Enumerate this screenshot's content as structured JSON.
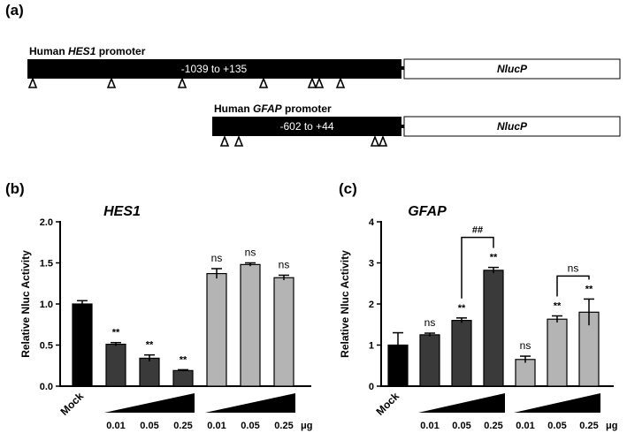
{
  "panels": {
    "a": "(a)",
    "b": "(b)",
    "c": "(c)"
  },
  "schematic": {
    "hes1": {
      "prefix": "Human ",
      "gene": "HES1",
      "suffix": " promoter",
      "region": "-1039 to +135",
      "reporter": "NlucP"
    },
    "gfap": {
      "prefix": "Human ",
      "gene": "GFAP",
      "suffix": " promoter",
      "region": "-602 to +44",
      "reporter": "NlucP"
    }
  },
  "chart_data": [
    {
      "type": "bar",
      "title": "HES1",
      "ylabel": "Relative Nluc Activity",
      "ylim": [
        0,
        2.0
      ],
      "yticks": [
        "0.0",
        "0.5",
        "1.0",
        "1.5",
        "2.0"
      ],
      "yticks_values": [
        0,
        0.5,
        1.0,
        1.5,
        2.0
      ],
      "mock_label": "Mock",
      "dose_labels": [
        "0.01",
        "0.05",
        "0.25",
        "0.01",
        "0.05",
        "0.25"
      ],
      "unit": "μg",
      "bars": [
        {
          "group": "mock",
          "value": 1.0,
          "error": 0.04,
          "color": "#000000",
          "sig": ""
        },
        {
          "group": "dark",
          "value": 0.51,
          "error": 0.02,
          "color": "#3a3a3a",
          "sig": "**"
        },
        {
          "group": "dark",
          "value": 0.34,
          "error": 0.04,
          "color": "#3a3a3a",
          "sig": "**"
        },
        {
          "group": "dark",
          "value": 0.19,
          "error": 0.01,
          "color": "#3a3a3a",
          "sig": "**"
        },
        {
          "group": "light",
          "value": 1.37,
          "error": 0.06,
          "color": "#b4b4b4",
          "sig": "ns"
        },
        {
          "group": "light",
          "value": 1.48,
          "error": 0.02,
          "color": "#b4b4b4",
          "sig": "ns"
        },
        {
          "group": "light",
          "value": 1.32,
          "error": 0.03,
          "color": "#b4b4b4",
          "sig": "ns"
        }
      ],
      "brackets": []
    },
    {
      "type": "bar",
      "title": "GFAP",
      "ylabel": "Relative Nluc Activity",
      "ylim": [
        0,
        4
      ],
      "yticks": [
        "0",
        "1",
        "2",
        "3",
        "4"
      ],
      "yticks_values": [
        0,
        1,
        2,
        3,
        4
      ],
      "mock_label": "Mock",
      "dose_labels": [
        "0.01",
        "0.05",
        "0.25",
        "0.01",
        "0.05",
        "0.25"
      ],
      "unit": "μg",
      "bars": [
        {
          "group": "mock",
          "value": 1.0,
          "error": 0.3,
          "color": "#000000",
          "sig": ""
        },
        {
          "group": "dark",
          "value": 1.25,
          "error": 0.04,
          "color": "#3a3a3a",
          "sig": "ns"
        },
        {
          "group": "dark",
          "value": 1.6,
          "error": 0.06,
          "color": "#3a3a3a",
          "sig": "**"
        },
        {
          "group": "dark",
          "value": 2.82,
          "error": 0.07,
          "color": "#3a3a3a",
          "sig": "**"
        },
        {
          "group": "light",
          "value": 0.65,
          "error": 0.08,
          "color": "#b4b4b4",
          "sig": "ns"
        },
        {
          "group": "light",
          "value": 1.63,
          "error": 0.08,
          "color": "#b4b4b4",
          "sig": "**"
        },
        {
          "group": "light",
          "value": 1.8,
          "error": 0.32,
          "color": "#b4b4b4",
          "sig": "**"
        }
      ],
      "brackets": [
        {
          "from": 2,
          "to": 3,
          "label": "##"
        },
        {
          "from": 5,
          "to": 6,
          "label": "ns"
        }
      ]
    }
  ]
}
